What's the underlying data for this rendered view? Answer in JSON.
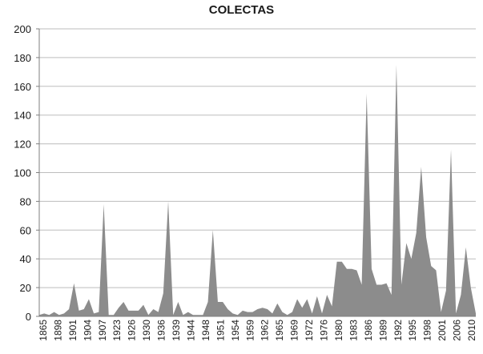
{
  "chart_data": {
    "type": "area",
    "title": "COLECTAS",
    "xlabel": "",
    "ylabel": "",
    "ylim": [
      0,
      200
    ],
    "y_ticks": [
      0,
      20,
      40,
      60,
      80,
      100,
      120,
      140,
      160,
      180,
      200
    ],
    "grid": "horizontal",
    "legend": "none",
    "fill_color": "#8c8c8c",
    "x_tick_labels": [
      "1865",
      "1898",
      "1901",
      "1904",
      "1907",
      "1923",
      "1926",
      "1930",
      "1936",
      "1939",
      "1944",
      "1948",
      "1951",
      "1954",
      "1959",
      "1962",
      "1965",
      "1969",
      "1972",
      "1976",
      "1980",
      "1983",
      "1986",
      "1989",
      "1992",
      "1995",
      "1998",
      "2001",
      "2006",
      "2010"
    ],
    "series": [
      {
        "values": [
          1,
          2,
          1,
          3,
          1,
          2,
          5,
          23,
          4,
          5,
          12,
          2,
          3,
          78,
          1,
          1,
          6,
          10,
          4,
          4,
          4,
          8,
          1,
          5,
          3,
          16,
          80,
          1,
          10,
          1,
          3,
          1,
          1,
          1,
          10,
          60,
          10,
          10,
          5,
          2,
          1,
          4,
          3,
          3,
          5,
          6,
          5,
          2,
          9,
          3,
          1,
          3,
          12,
          6,
          12,
          2,
          14,
          2,
          15,
          7,
          38,
          38,
          33,
          33,
          32,
          22,
          155,
          33,
          22,
          22,
          23,
          15,
          175,
          22,
          51,
          40,
          58,
          104,
          55,
          35,
          32,
          3,
          18,
          116,
          2,
          15,
          48,
          20,
          2
        ]
      }
    ]
  }
}
